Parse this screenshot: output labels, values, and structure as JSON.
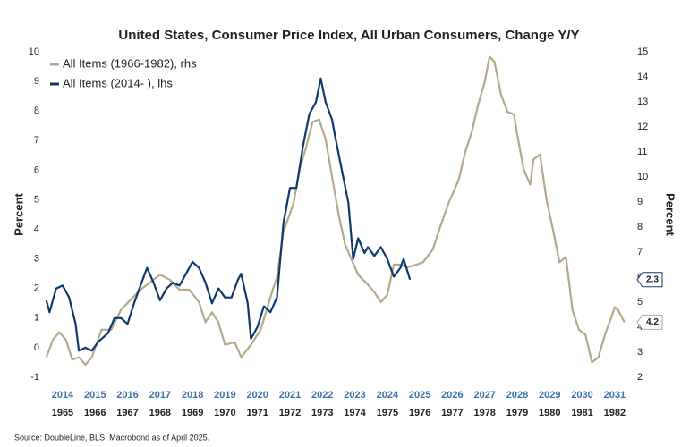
{
  "chart_data": {
    "type": "line",
    "title": "United States, Consumer Price Index, All Urban Consumers, Change Y/Y",
    "ylabel": "Percent",
    "y2label": "Percent",
    "source": "Source: DoubleLine, BLS, Macrobond as of April 2025.",
    "xlim": [
      2013.95,
      2032.0
    ],
    "xticks": [
      {
        "value": 2014.5,
        "label": "2014"
      },
      {
        "value": 2015.5,
        "label": "2015"
      },
      {
        "value": 2016.5,
        "label": "2016"
      },
      {
        "value": 2017.5,
        "label": "2017"
      },
      {
        "value": 2018.5,
        "label": "2018"
      },
      {
        "value": 2019.5,
        "label": "2019"
      },
      {
        "value": 2020.5,
        "label": "2020"
      },
      {
        "value": 2021.5,
        "label": "2021"
      },
      {
        "value": 2022.5,
        "label": "2022"
      },
      {
        "value": 2023.5,
        "label": "2023"
      },
      {
        "value": 2024.5,
        "label": "2024"
      },
      {
        "value": 2025.5,
        "label": "2025"
      },
      {
        "value": 2026.5,
        "label": "2026"
      },
      {
        "value": 2027.5,
        "label": "2027"
      },
      {
        "value": 2028.5,
        "label": "2028"
      },
      {
        "value": 2029.5,
        "label": "2029"
      },
      {
        "value": 2030.5,
        "label": "2030"
      },
      {
        "value": 2031.5,
        "label": "2031"
      }
    ],
    "x2lim": [
      1964.95,
      1983.0
    ],
    "x2ticks": [
      {
        "value": 1965.5,
        "label": "1965"
      },
      {
        "value": 1966.5,
        "label": "1966"
      },
      {
        "value": 1967.5,
        "label": "1967"
      },
      {
        "value": 1968.5,
        "label": "1968"
      },
      {
        "value": 1969.5,
        "label": "1969"
      },
      {
        "value": 1970.5,
        "label": "1970"
      },
      {
        "value": 1971.5,
        "label": "1971"
      },
      {
        "value": 1972.5,
        "label": "1972"
      },
      {
        "value": 1973.5,
        "label": "1973"
      },
      {
        "value": 1974.5,
        "label": "1974"
      },
      {
        "value": 1975.5,
        "label": "1975"
      },
      {
        "value": 1976.5,
        "label": "1976"
      },
      {
        "value": 1977.5,
        "label": "1977"
      },
      {
        "value": 1978.5,
        "label": "1978"
      },
      {
        "value": 1979.5,
        "label": "1979"
      },
      {
        "value": 1980.5,
        "label": "1980"
      },
      {
        "value": 1981.5,
        "label": "1981"
      },
      {
        "value": 1982.5,
        "label": "1982"
      }
    ],
    "ylim": [
      -1,
      10
    ],
    "yticks": [
      -1,
      0,
      1,
      2,
      3,
      4,
      5,
      6,
      7,
      8,
      9,
      10
    ],
    "y2lim": [
      2,
      15
    ],
    "y2ticks": [
      2,
      3,
      4,
      5,
      6,
      7,
      8,
      9,
      10,
      11,
      12,
      13,
      14,
      15
    ],
    "legend": "top-left",
    "series": [
      {
        "name": "All Items (1966-1982), rhs",
        "color": "#b5a98b",
        "axis": "y2",
        "xaxis": "x2",
        "x": [
          1965.0,
          1965.2,
          1965.4,
          1965.6,
          1965.8,
          1966.0,
          1966.2,
          1966.4,
          1966.7,
          1967.0,
          1967.3,
          1967.6,
          1967.9,
          1968.2,
          1968.5,
          1968.8,
          1969.1,
          1969.4,
          1969.7,
          1969.9,
          1970.1,
          1970.3,
          1970.5,
          1970.8,
          1971.0,
          1971.3,
          1971.6,
          1971.9,
          1972.1,
          1972.3,
          1972.6,
          1972.8,
          1973.0,
          1973.2,
          1973.4,
          1973.6,
          1973.8,
          1974.0,
          1974.2,
          1974.4,
          1974.6,
          1974.9,
          1975.1,
          1975.3,
          1975.5,
          1975.7,
          1975.9,
          1976.1,
          1976.4,
          1976.6,
          1976.9,
          1977.1,
          1977.4,
          1977.7,
          1977.9,
          1978.1,
          1978.3,
          1978.5,
          1978.65,
          1978.8,
          1979.0,
          1979.2,
          1979.4,
          1979.5,
          1979.7,
          1979.9,
          1980.0,
          1980.2,
          1980.4,
          1980.6,
          1980.8,
          1981.0,
          1981.2,
          1981.4,
          1981.6,
          1981.8,
          1982.0,
          1982.2,
          1982.4,
          1982.5,
          1982.6,
          1982.8
        ],
        "values": [
          2.8,
          3.5,
          3.8,
          3.5,
          2.7,
          2.8,
          2.5,
          2.8,
          3.9,
          3.9,
          4.7,
          5.1,
          5.5,
          5.8,
          6.1,
          5.9,
          5.5,
          5.5,
          5.0,
          4.2,
          4.6,
          4.2,
          3.3,
          3.4,
          2.8,
          3.3,
          3.9,
          5.2,
          6.0,
          7.8,
          8.9,
          10.3,
          11.2,
          12.2,
          12.3,
          11.5,
          10.0,
          8.5,
          7.3,
          6.7,
          6.1,
          5.7,
          5.4,
          5.0,
          5.3,
          6.5,
          6.5,
          6.4,
          6.5,
          6.6,
          7.1,
          7.9,
          9.0,
          9.9,
          11.0,
          11.8,
          12.9,
          13.8,
          14.8,
          14.6,
          13.3,
          12.6,
          12.5,
          11.7,
          10.3,
          9.7,
          10.7,
          10.9,
          9.1,
          7.9,
          6.6,
          6.8,
          4.7,
          3.9,
          3.7,
          2.6,
          2.8,
          3.7,
          4.4,
          4.8,
          4.7,
          4.2
        ]
      },
      {
        "name": "All Items (2014-   ), lhs",
        "color": "#0e3a6b",
        "axis": "y",
        "x": [
          2014.0,
          2014.1,
          2014.3,
          2014.5,
          2014.7,
          2014.9,
          2015.0,
          2015.2,
          2015.4,
          2015.6,
          2015.9,
          2016.1,
          2016.3,
          2016.5,
          2016.7,
          2016.9,
          2017.1,
          2017.3,
          2017.5,
          2017.7,
          2017.9,
          2018.1,
          2018.3,
          2018.5,
          2018.7,
          2018.9,
          2019.1,
          2019.3,
          2019.5,
          2019.7,
          2019.9,
          2020.0,
          2020.2,
          2020.3,
          2020.5,
          2020.7,
          2020.9,
          2021.1,
          2021.3,
          2021.5,
          2021.7,
          2021.9,
          2022.1,
          2022.3,
          2022.45,
          2022.6,
          2022.8,
          2022.9,
          2023.1,
          2023.3,
          2023.45,
          2023.6,
          2023.8,
          2023.9,
          2024.1,
          2024.3,
          2024.5,
          2024.7,
          2024.9,
          2025.0,
          2025.2
        ],
        "values": [
          1.6,
          1.2,
          2.0,
          2.1,
          1.7,
          0.8,
          -0.1,
          0.0,
          -0.1,
          0.2,
          0.5,
          1.0,
          1.0,
          0.8,
          1.5,
          2.1,
          2.7,
          2.2,
          1.6,
          2.0,
          2.2,
          2.1,
          2.5,
          2.9,
          2.7,
          2.2,
          1.5,
          2.0,
          1.7,
          1.7,
          2.3,
          2.5,
          1.5,
          0.3,
          0.7,
          1.4,
          1.2,
          1.7,
          4.2,
          5.4,
          5.4,
          6.8,
          7.9,
          8.3,
          9.1,
          8.3,
          7.7,
          7.1,
          6.0,
          4.9,
          3.0,
          3.7,
          3.2,
          3.4,
          3.1,
          3.4,
          3.0,
          2.4,
          2.7,
          3.0,
          2.3
        ]
      }
    ]
  }
}
